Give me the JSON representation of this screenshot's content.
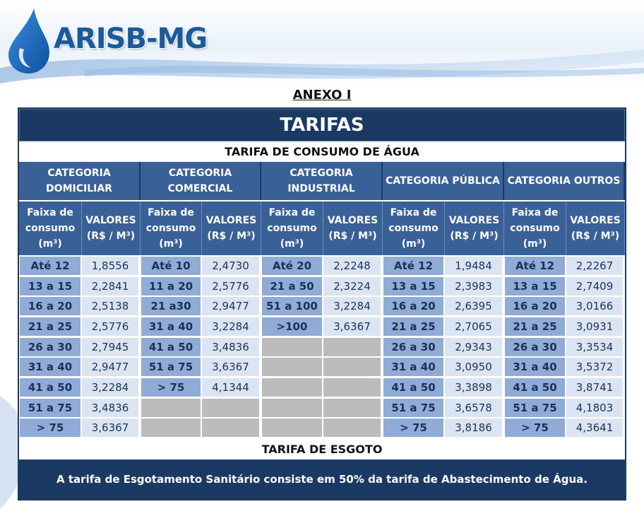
{
  "logo": {
    "text": "ARISB-MG"
  },
  "annex_title": "ANEXO I",
  "main_title": "TARIFAS",
  "water_section_title": "TARIFA DE CONSUMO DE ÁGUA",
  "categories": [
    {
      "name": "CATEGORIA DOMICILIAR",
      "line1": "CATEGORIA",
      "line2": "DOMICILIAR"
    },
    {
      "name": "CATEGORIA COMERCIAL",
      "line1": "CATEGORIA",
      "line2": "COMERCIAL"
    },
    {
      "name": "CATEGORIA INDUSTRIAL",
      "line1": "CATEGORIA",
      "line2": "INDUSTRIAL"
    },
    {
      "name": "CATEGORIA PÚBLICA",
      "line1": "CATEGORIA PÚBLICA",
      "line2": ""
    },
    {
      "name": "CATEGORIA OUTROS",
      "line1": "CATEGORIA OUTROS",
      "line2": ""
    }
  ],
  "column_headers": {
    "range_l1": "Faixa de",
    "range_l2": "consumo",
    "range_l3": "(m³)",
    "value_l1": "VALORES",
    "value_l2": "(R$ / M³)"
  },
  "rows": {
    "domiciliar": [
      [
        "Até 12",
        "1,8556"
      ],
      [
        "13 a 15",
        "2,2841"
      ],
      [
        "16 a 20",
        "2,5138"
      ],
      [
        "21 a 25",
        "2,5776"
      ],
      [
        "26 a 30",
        "2,7945"
      ],
      [
        "31 a 40",
        "2,9477"
      ],
      [
        "41 a 50",
        "3,2284"
      ],
      [
        "51 a 75",
        "3,4836"
      ],
      [
        "> 75",
        "3,6367"
      ]
    ],
    "comercial": [
      [
        "Até 10",
        "2,4730"
      ],
      [
        "11 a 20",
        "2,5776"
      ],
      [
        "21 a30",
        "2,9477"
      ],
      [
        "31 a 40",
        "3,2284"
      ],
      [
        "41 a 50",
        "3,4836"
      ],
      [
        "51 a 75",
        "3,6367"
      ],
      [
        "> 75",
        "4,1344"
      ],
      [
        "",
        ""
      ],
      [
        "",
        ""
      ]
    ],
    "industrial": [
      [
        "Até 20",
        "2,2248"
      ],
      [
        "21 a 50",
        "2,3224"
      ],
      [
        "51 a 100",
        "3,2284"
      ],
      [
        ">100",
        "3,6367"
      ],
      [
        "",
        ""
      ],
      [
        "",
        ""
      ],
      [
        "",
        ""
      ],
      [
        "",
        ""
      ],
      [
        "",
        ""
      ]
    ],
    "publica": [
      [
        "Até 12",
        "1,9484"
      ],
      [
        "13 a 15",
        "2,3983"
      ],
      [
        "16 a 20",
        "2,6395"
      ],
      [
        "21 a 25",
        "2,7065"
      ],
      [
        "26 a 30",
        "2,9343"
      ],
      [
        "31 a 40",
        "3,0950"
      ],
      [
        "41 a 50",
        "3,3898"
      ],
      [
        "51 a 75",
        "3,6578"
      ],
      [
        "> 75",
        "3,8186"
      ]
    ],
    "outros": [
      [
        "Até 12",
        "2,2267"
      ],
      [
        "13 a 15",
        "2,7409"
      ],
      [
        "16 a 20",
        "3,0166"
      ],
      [
        "21 a 25",
        "3,0931"
      ],
      [
        "26 a 30",
        "3,3534"
      ],
      [
        "31 a 40",
        "3,5372"
      ],
      [
        "41 a 50",
        "3,8741"
      ],
      [
        "51 a 75",
        "4,1803"
      ],
      [
        "> 75",
        "4,3641"
      ]
    ]
  },
  "sewage_title": "TARIFA DE ESGOTO",
  "sewage_text": "A tarifa de Esgotamento Sanitário consiste em 50% da tarifa de Abastecimento de Água.",
  "colors": {
    "dark_blue": "#1b3a63",
    "header_blue": "#3a6098",
    "range_blue": "#8fabd6",
    "value_light": "#dbe5f2",
    "empty_gray": "#bcbcbc"
  }
}
